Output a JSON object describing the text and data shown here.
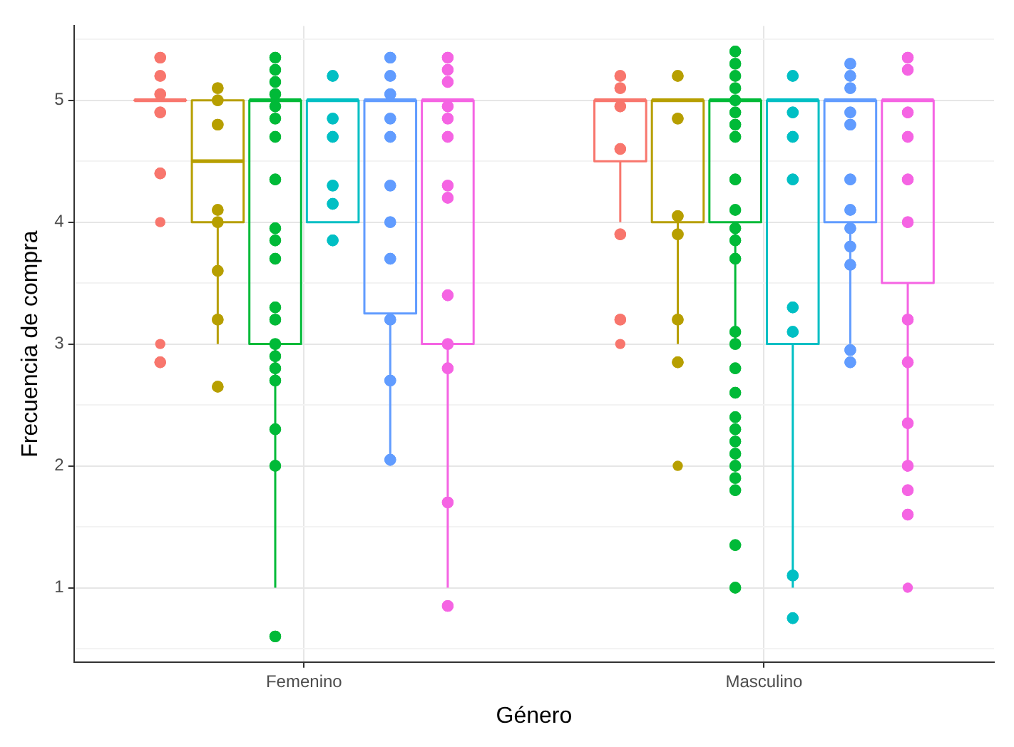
{
  "chart_data": {
    "type": "box",
    "xlabel": "Género",
    "ylabel": "Frecuencia de compra",
    "categories": [
      "Femenino",
      "Masculino"
    ],
    "ylim": [
      0.39,
      5.61
    ],
    "yticks": [
      {
        "value": 0.5,
        "label": null
      },
      1,
      {
        "value": 1.5,
        "label": null
      },
      2,
      {
        "value": 2.5,
        "label": null
      },
      3,
      {
        "value": 3.5,
        "label": null
      },
      4,
      {
        "value": 4.5,
        "label": null
      },
      5,
      {
        "value": 5.5,
        "label": null
      }
    ],
    "grid": true,
    "legend": false,
    "series": [
      {
        "color": "#f8766d",
        "boxes": [
          {
            "low": 5,
            "q1": 5,
            "median": 5,
            "q3": 5,
            "high": 5,
            "outliers": [
              4,
              3
            ]
          },
          {
            "low": 4,
            "q1": 4.5,
            "median": 5,
            "q3": 5,
            "high": 5,
            "outliers": [
              3
            ]
          }
        ]
      },
      {
        "color": "#b79f00",
        "boxes": [
          {
            "low": 3,
            "q1": 4,
            "median": 4.5,
            "q3": 5,
            "high": 5
          },
          {
            "low": 3,
            "q1": 4,
            "median": 5,
            "q3": 5,
            "high": 5,
            "outliers": [
              2
            ]
          }
        ]
      },
      {
        "color": "#00ba38",
        "boxes": [
          {
            "low": 1,
            "q1": 3,
            "median": 5,
            "q3": 5,
            "high": 5
          },
          {
            "low": 3,
            "q1": 4,
            "median": 5,
            "q3": 5,
            "high": 5
          }
        ]
      },
      {
        "color": "#00bfc4",
        "boxes": [
          {
            "low": 4,
            "q1": 4,
            "median": 5,
            "q3": 5,
            "high": 5
          },
          {
            "low": 1,
            "q1": 3,
            "median": 5,
            "q3": 5,
            "high": 5
          }
        ]
      },
      {
        "color": "#619cff",
        "boxes": [
          {
            "low": 2,
            "q1": 3.25,
            "median": 5,
            "q3": 5,
            "high": 5
          },
          {
            "low": 3,
            "q1": 4,
            "median": 5,
            "q3": 5,
            "high": 5
          }
        ]
      },
      {
        "color": "#f564e3",
        "boxes": [
          {
            "low": 1,
            "q1": 3,
            "median": 5,
            "q3": 5,
            "high": 5
          },
          {
            "low": 2,
            "q1": 3.5,
            "median": 5,
            "q3": 5,
            "high": 5,
            "outliers": [
              1
            ]
          }
        ]
      },
      {
        "type": "scatter",
        "color": "#f8766d",
        "x": [
          "Femenino",
          "Femenino",
          "Femenino",
          "Femenino",
          "Femenino",
          "Femenino",
          "Masculino",
          "Masculino",
          "Masculino",
          "Masculino",
          "Masculino",
          "Masculino"
        ],
        "values": [
          5.35,
          5.2,
          5.05,
          4.9,
          4.4,
          2.85,
          5.2,
          5.1,
          4.95,
          4.6,
          3.9,
          3.2
        ]
      },
      {
        "type": "scatter",
        "color": "#b79f00",
        "x": [
          "Femenino",
          "Femenino",
          "Femenino",
          "Femenino",
          "Femenino",
          "Femenino",
          "Femenino",
          "Femenino",
          "Masculino",
          "Masculino",
          "Masculino",
          "Masculino",
          "Masculino",
          "Masculino"
        ],
        "values": [
          5.1,
          5.0,
          4.8,
          4.1,
          4.0,
          3.6,
          3.2,
          2.65,
          5.2,
          4.85,
          4.05,
          3.9,
          3.2,
          2.85
        ]
      },
      {
        "type": "scatter",
        "color": "#00ba38",
        "x": [
          "Femenino",
          "Femenino",
          "Femenino",
          "Femenino",
          "Femenino",
          "Femenino",
          "Femenino",
          "Femenino",
          "Femenino",
          "Femenino",
          "Femenino",
          "Femenino",
          "Femenino",
          "Femenino",
          "Femenino",
          "Femenino",
          "Femenino",
          "Femenino",
          "Femenino",
          "Femenino",
          "Masculino",
          "Masculino",
          "Masculino",
          "Masculino",
          "Masculino",
          "Masculino",
          "Masculino",
          "Masculino",
          "Masculino",
          "Masculino",
          "Masculino",
          "Masculino",
          "Masculino",
          "Masculino",
          "Masculino",
          "Masculino",
          "Masculino",
          "Masculino",
          "Masculino",
          "Masculino",
          "Masculino",
          "Masculino",
          "Masculino",
          "Masculino",
          "Masculino",
          "Masculino"
        ],
        "values": [
          5.35,
          5.25,
          5.15,
          5.05,
          4.95,
          4.85,
          4.7,
          4.35,
          3.95,
          3.85,
          3.7,
          3.3,
          3.2,
          3.0,
          2.9,
          2.8,
          2.7,
          2.3,
          2.0,
          0.6,
          5.4,
          5.3,
          5.2,
          5.1,
          5.0,
          4.9,
          4.8,
          4.7,
          4.35,
          4.1,
          3.95,
          3.85,
          3.7,
          3.1,
          3.0,
          2.8,
          2.6,
          2.4,
          2.3,
          2.2,
          2.1,
          2.0,
          1.9,
          1.8,
          1.35,
          1.0
        ]
      },
      {
        "type": "scatter",
        "color": "#00bfc4",
        "x": [
          "Femenino",
          "Femenino",
          "Femenino",
          "Femenino",
          "Femenino",
          "Femenino",
          "Masculino",
          "Masculino",
          "Masculino",
          "Masculino",
          "Masculino",
          "Masculino",
          "Masculino",
          "Masculino"
        ],
        "values": [
          5.2,
          4.85,
          4.7,
          4.3,
          4.15,
          3.85,
          5.2,
          4.9,
          4.7,
          4.35,
          3.3,
          3.1,
          1.1,
          0.75
        ]
      },
      {
        "type": "scatter",
        "color": "#619cff",
        "x": [
          "Femenino",
          "Femenino",
          "Femenino",
          "Femenino",
          "Femenino",
          "Femenino",
          "Femenino",
          "Femenino",
          "Femenino",
          "Femenino",
          "Femenino",
          "Masculino",
          "Masculino",
          "Masculino",
          "Masculino",
          "Masculino",
          "Masculino",
          "Masculino",
          "Masculino",
          "Masculino",
          "Masculino",
          "Masculino",
          "Masculino"
        ],
        "values": [
          5.35,
          5.2,
          5.05,
          4.85,
          4.7,
          4.3,
          4.0,
          3.7,
          3.2,
          2.7,
          2.05,
          5.3,
          5.2,
          5.1,
          4.9,
          4.8,
          4.35,
          4.1,
          3.95,
          3.8,
          3.65,
          2.95,
          2.85
        ]
      },
      {
        "type": "scatter",
        "color": "#f564e3",
        "x": [
          "Femenino",
          "Femenino",
          "Femenino",
          "Femenino",
          "Femenino",
          "Femenino",
          "Femenino",
          "Femenino",
          "Femenino",
          "Femenino",
          "Femenino",
          "Femenino",
          "Femenino",
          "Masculino",
          "Masculino",
          "Masculino",
          "Masculino",
          "Masculino",
          "Masculino",
          "Masculino",
          "Masculino",
          "Masculino",
          "Masculino",
          "Masculino",
          "Masculino"
        ],
        "values": [
          5.35,
          5.25,
          5.15,
          4.95,
          4.85,
          4.7,
          4.3,
          4.2,
          3.4,
          3.0,
          2.8,
          1.7,
          0.85,
          5.35,
          5.25,
          4.9,
          4.7,
          4.35,
          4.0,
          3.2,
          2.85,
          2.35,
          2.0,
          1.8,
          1.6
        ]
      }
    ]
  }
}
